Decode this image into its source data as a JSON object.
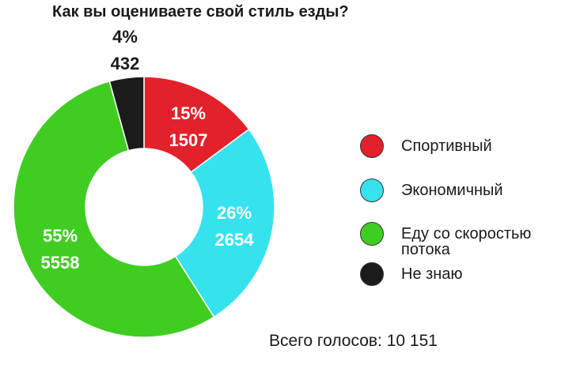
{
  "chart_data": {
    "type": "donut",
    "title": "Как вы оцениваете свой стиль езды?",
    "categories": [
      "Спортивный",
      "Экономичный",
      "Еду со скоростью потока",
      "Не знаю"
    ],
    "values": [
      1507,
      2654,
      5558,
      432
    ],
    "percent_labels": [
      "15%",
      "26%",
      "55%",
      "4%"
    ],
    "colors": [
      "#e3212b",
      "#36e2ee",
      "#3fcd22",
      "#1b1b1b"
    ],
    "total_label": "Всего голосов: 10 151"
  }
}
